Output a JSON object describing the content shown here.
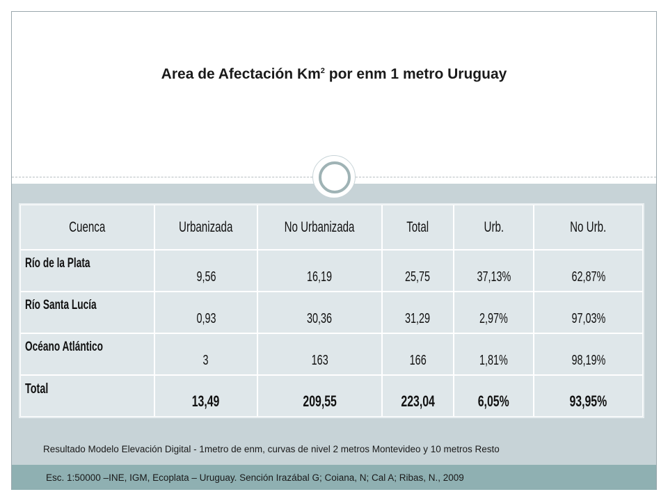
{
  "title": {
    "text_before": "Area de Afectación Km",
    "superscript": "2",
    "text_after": " por enm 1 metro Uruguay"
  },
  "table": {
    "headers": [
      "Cuenca",
      "Urbanizada",
      "No Urbanizada",
      "Total",
      "Urb.",
      "No Urb."
    ],
    "rows": [
      [
        "Río de la Plata",
        "9,56",
        "16,19",
        "25,75",
        "37,13%",
        "62,87%"
      ],
      [
        "Río Santa Lucía",
        "0,93",
        "30,36",
        "31,29",
        "2,97%",
        "97,03%"
      ],
      [
        "Océano Atlántico",
        "3",
        "163",
        "166",
        "1,81%",
        "98,19%"
      ],
      [
        "Total",
        "13,49",
        "209,55",
        "223,04",
        "6,05%",
        "93,95%"
      ]
    ]
  },
  "caption": "Resultado Modelo Elevación Digital - 1metro de enm, curvas de nivel 2 metros Montevideo y 10 metros Resto",
  "source": "Esc. 1:50000 –INE, IGM, Ecoplata – Uruguay. Sención Irazábal G; Coiana, N; Cal A; Ribas, N., 2009",
  "colors": {
    "content_background": "#c7d3d7",
    "footer_bar": "#8fb0b2",
    "table_background": "#dfe7ea"
  }
}
